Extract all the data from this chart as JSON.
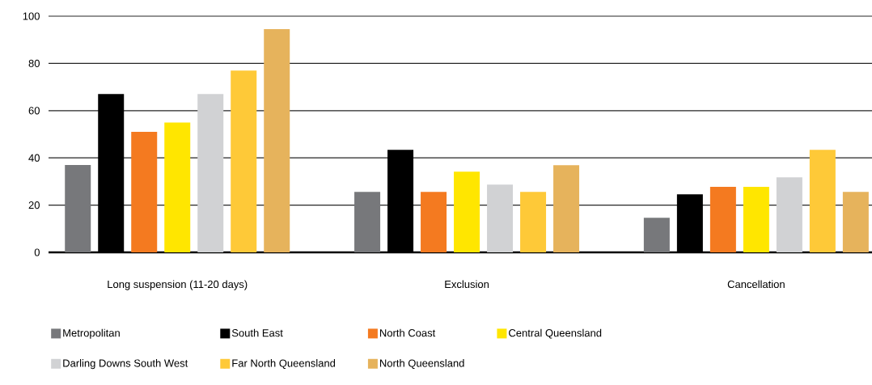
{
  "chart_data": {
    "type": "bar",
    "categories": [
      "Long suspension (11-20 days)",
      "Exclusion",
      "Cancellation"
    ],
    "series": [
      {
        "name": "Metropolitan",
        "color": "#77787b",
        "values": [
          37,
          25.6,
          14.6
        ]
      },
      {
        "name": "South East",
        "color": "#000000",
        "values": [
          67,
          43.4,
          24.6
        ]
      },
      {
        "name": "North Coast",
        "color": "#f47a20",
        "values": [
          51,
          25.6,
          27.7
        ]
      },
      {
        "name": "Central Queensland",
        "color": "#ffe600",
        "values": [
          55,
          34.2,
          27.7
        ]
      },
      {
        "name": "Darling Downs South West",
        "color": "#d1d2d4",
        "values": [
          67,
          28.7,
          31.8
        ]
      },
      {
        "name": "Far North Queensland",
        "color": "#fec938",
        "values": [
          77,
          25.6,
          43.4
        ]
      },
      {
        "name": "North Queensland",
        "color": "#e6b35c",
        "values": [
          94.5,
          36.9,
          25.6
        ]
      }
    ],
    "ylim": [
      0,
      100
    ],
    "yticks": [
      0,
      20,
      40,
      60,
      80,
      100
    ],
    "grid": "y",
    "legend": "bottom"
  }
}
